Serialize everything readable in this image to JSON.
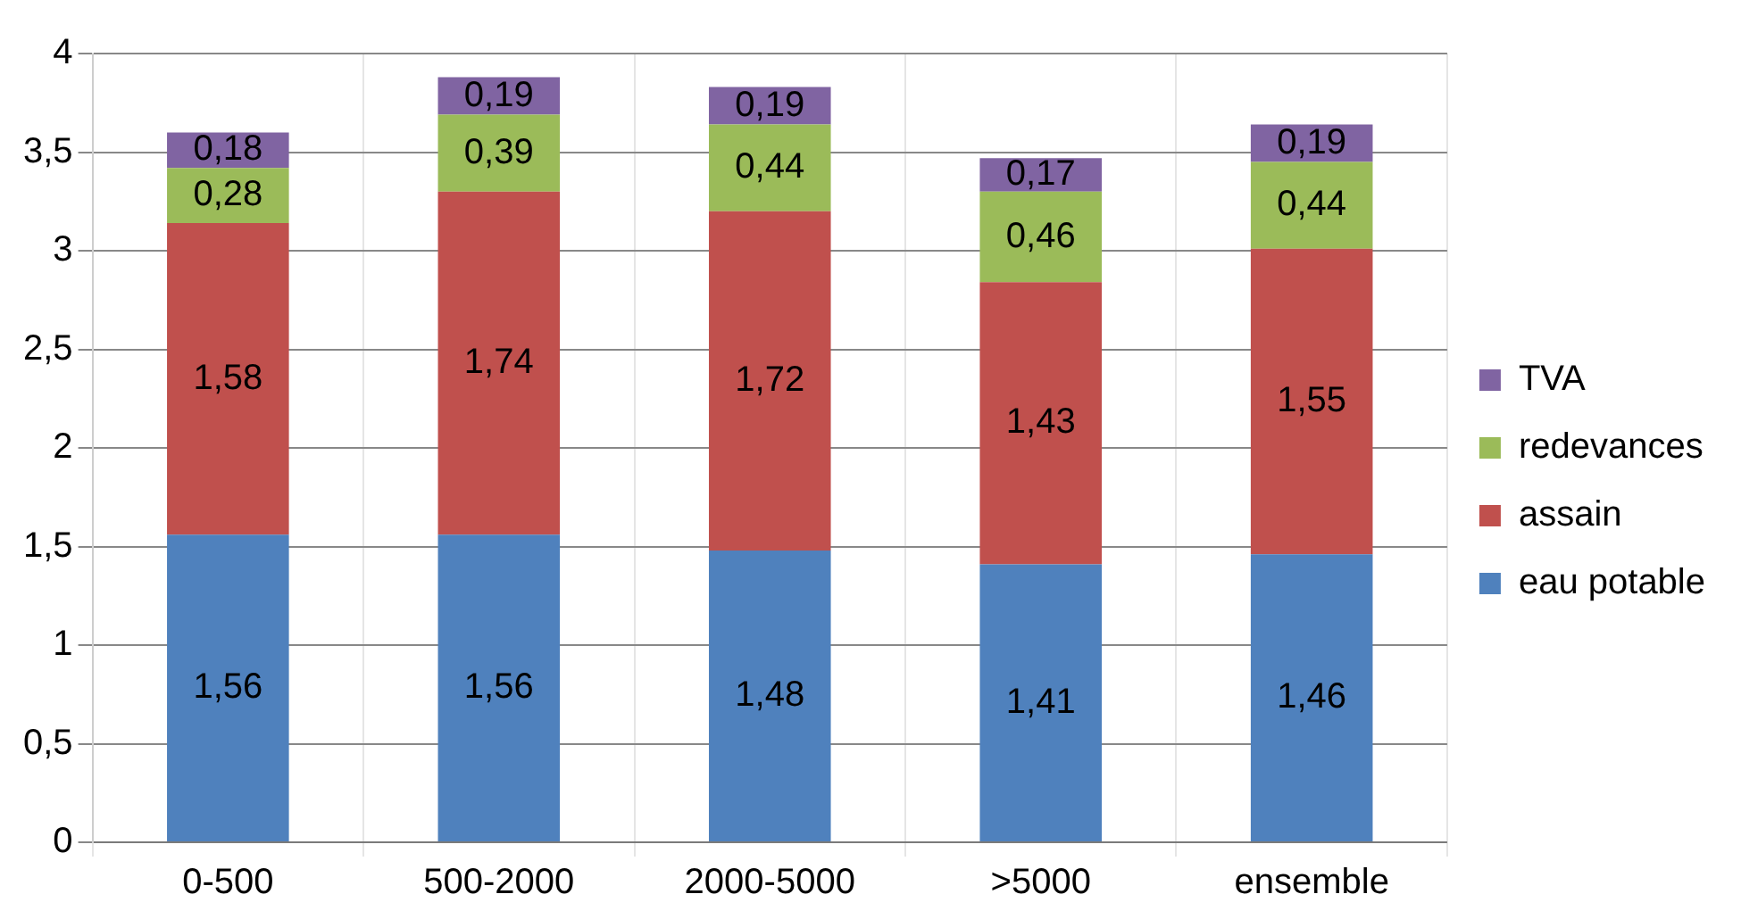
{
  "chart_data": {
    "type": "bar",
    "stacked": true,
    "categories": [
      "0-500",
      "500-2000",
      "2000-5000",
      ">5000",
      "ensemble"
    ],
    "series": [
      {
        "name": "eau potable",
        "color": "#4f81bd",
        "values": [
          1.56,
          1.56,
          1.48,
          1.41,
          1.46
        ],
        "value_labels": [
          "1,56",
          "1,56",
          "1,48",
          "1,41",
          "1,46"
        ]
      },
      {
        "name": "assain",
        "color": "#c0504d",
        "values": [
          1.58,
          1.74,
          1.72,
          1.43,
          1.55
        ],
        "value_labels": [
          "1,58",
          "1,74",
          "1,72",
          "1,43",
          "1,55"
        ]
      },
      {
        "name": "redevances",
        "color": "#9bbb59",
        "values": [
          0.28,
          0.39,
          0.44,
          0.46,
          0.44
        ],
        "value_labels": [
          "0,28",
          "0,39",
          "0,44",
          "0,46",
          "0,44"
        ]
      },
      {
        "name": "TVA",
        "color": "#8064a2",
        "values": [
          0.18,
          0.19,
          0.19,
          0.17,
          0.19
        ],
        "value_labels": [
          "0,18",
          "0,19",
          "0,19",
          "0,17",
          "0,19"
        ]
      }
    ],
    "ylim": [
      0,
      4
    ],
    "yticks": [
      0,
      {
        "value": 0.5,
        "label": "0,5"
      },
      1,
      {
        "value": 1.5,
        "label": "1,5"
      },
      2,
      {
        "value": 2.5,
        "label": "2,5"
      },
      3,
      {
        "value": 3.5,
        "label": "3,5"
      },
      4
    ],
    "grid": true,
    "legend": "right"
  }
}
